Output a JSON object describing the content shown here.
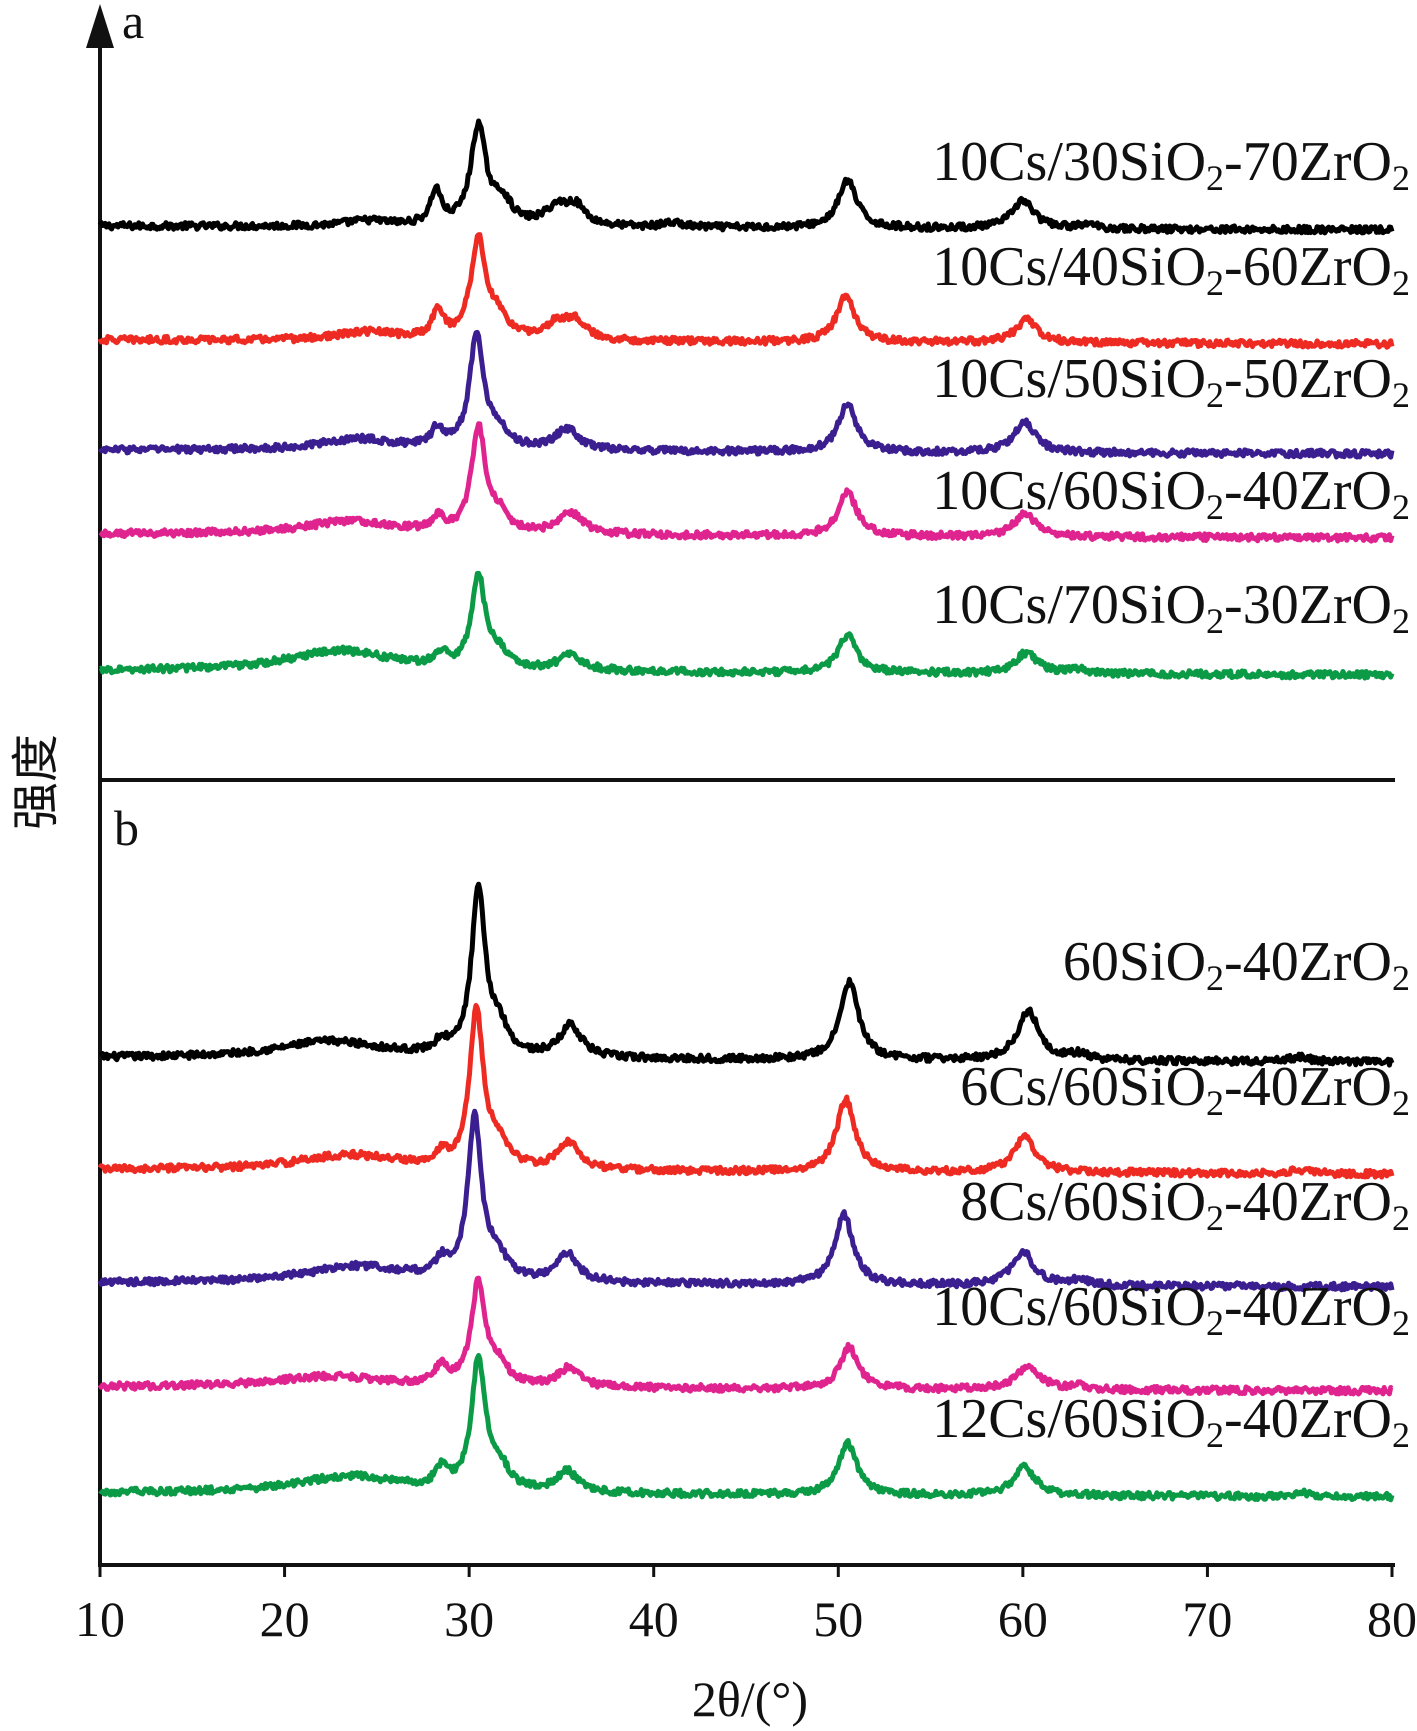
{
  "chart_data": {
    "type": "line",
    "xlabel": "2θ/(°)",
    "ylabel": "强度",
    "xlim": [
      10,
      80
    ],
    "x_ticks": [
      10,
      20,
      30,
      40,
      50,
      60,
      70,
      80
    ],
    "grid": false,
    "panels": [
      {
        "label": "a",
        "series": [
          {
            "name": "10Cs/30SiO2-70ZrO2",
            "label_main": "10Cs/30SiO",
            "label_sub": "2",
            "label_mid": "-70ZrO",
            "label_sub2": "2",
            "color": "#000000",
            "peaks": [
              [
                24.5,
                0.15,
                1.5
              ],
              [
                28.2,
                0.9,
                0.35
              ],
              [
                30.5,
                2.6,
                0.5
              ],
              [
                31.8,
                0.6,
                0.6
              ],
              [
                34.8,
                0.5,
                0.8
              ],
              [
                35.8,
                0.45,
                0.6
              ],
              [
                41.0,
                0.12,
                0.6
              ],
              [
                50.5,
                1.25,
                0.6
              ],
              [
                60.0,
                0.75,
                0.7
              ],
              [
                63.5,
                0.1,
                0.6
              ]
            ]
          },
          {
            "name": "10Cs/40SiO2-60ZrO2",
            "label_main": "10Cs/40SiO",
            "label_sub": "2",
            "label_mid": "-60ZrO",
            "label_sub2": "2",
            "color": "#ee2b22",
            "peaks": [
              [
                24.5,
                0.22,
                2.0
              ],
              [
                28.3,
                0.75,
                0.35
              ],
              [
                30.5,
                2.6,
                0.5
              ],
              [
                31.6,
                0.5,
                0.6
              ],
              [
                34.8,
                0.45,
                0.8
              ],
              [
                35.8,
                0.45,
                0.6
              ],
              [
                50.4,
                1.2,
                0.6
              ],
              [
                60.2,
                0.6,
                0.7
              ]
            ]
          },
          {
            "name": "10Cs/50SiO2-50ZrO2",
            "label_main": "10Cs/50SiO",
            "label_sub": "2",
            "label_mid": "-50ZrO",
            "label_sub2": "2",
            "color": "#3b1e8f",
            "peaks": [
              [
                24.0,
                0.3,
                2.5
              ],
              [
                28.3,
                0.5,
                0.4
              ],
              [
                30.4,
                3.0,
                0.45
              ],
              [
                31.6,
                0.5,
                0.6
              ],
              [
                35.3,
                0.55,
                0.8
              ],
              [
                50.5,
                1.25,
                0.6
              ],
              [
                60.1,
                0.8,
                0.7
              ]
            ]
          },
          {
            "name": "10Cs/60SiO2-40ZrO2",
            "label_main": "10Cs/60SiO",
            "label_sub": "2",
            "label_mid": "-40ZrO",
            "label_sub2": "2",
            "color": "#e0248f",
            "peaks": [
              [
                23.5,
                0.35,
                3.0
              ],
              [
                28.3,
                0.35,
                0.4
              ],
              [
                30.5,
                2.75,
                0.45
              ],
              [
                31.6,
                0.45,
                0.6
              ],
              [
                35.5,
                0.55,
                0.8
              ],
              [
                50.5,
                1.15,
                0.6
              ],
              [
                60.1,
                0.6,
                0.7
              ]
            ]
          },
          {
            "name": "10Cs/70SiO2-30ZrO2",
            "label_main": "10Cs/70SiO",
            "label_sub": "2",
            "label_mid": "-30ZrO",
            "label_sub2": "2",
            "color": "#0b9a45",
            "peaks": [
              [
                23.0,
                0.55,
                3.5
              ],
              [
                28.5,
                0.3,
                0.4
              ],
              [
                30.5,
                2.4,
                0.45
              ],
              [
                31.6,
                0.4,
                0.6
              ],
              [
                35.5,
                0.4,
                0.8
              ],
              [
                50.5,
                1.0,
                0.6
              ],
              [
                60.2,
                0.55,
                0.7
              ],
              [
                63.0,
                0.1,
                0.6
              ]
            ]
          }
        ]
      },
      {
        "label": "b",
        "series": [
          {
            "name": "60SiO2-40ZrO2",
            "label_main": "60SiO",
            "label_sub": "2",
            "label_mid": "-40ZrO",
            "label_sub2": "2",
            "color": "#000000",
            "peaks": [
              [
                22.5,
                0.45,
                3.5
              ],
              [
                28.5,
                0.3,
                0.4
              ],
              [
                30.5,
                4.3,
                0.45
              ],
              [
                31.6,
                0.7,
                0.6
              ],
              [
                35.5,
                0.85,
                0.7
              ],
              [
                50.6,
                2.05,
                0.6
              ],
              [
                60.3,
                1.3,
                0.7
              ],
              [
                63.0,
                0.15,
                0.6
              ],
              [
                75.0,
                0.12,
                0.6
              ]
            ]
          },
          {
            "name": "6Cs/60SiO2-40ZrO2",
            "label_main": "6Cs/60SiO",
            "label_sub": "2",
            "label_mid": "-40ZrO",
            "label_sub2": "2",
            "color": "#ee2b22",
            "peaks": [
              [
                23.5,
                0.4,
                3.5
              ],
              [
                28.5,
                0.3,
                0.4
              ],
              [
                30.4,
                4.1,
                0.45
              ],
              [
                31.6,
                0.6,
                0.6
              ],
              [
                35.4,
                0.7,
                0.7
              ],
              [
                50.4,
                1.9,
                0.6
              ],
              [
                60.1,
                0.95,
                0.7
              ],
              [
                75.0,
                0.1,
                0.6
              ]
            ]
          },
          {
            "name": "8Cs/60SiO2-40ZrO2",
            "label_main": "8Cs/60SiO",
            "label_sub": "2",
            "label_mid": "-40ZrO",
            "label_sub2": "2",
            "color": "#3b1e8f",
            "peaks": [
              [
                24.0,
                0.45,
                3.5
              ],
              [
                28.5,
                0.4,
                0.4
              ],
              [
                30.3,
                4.2,
                0.45
              ],
              [
                31.5,
                0.6,
                0.6
              ],
              [
                35.3,
                0.75,
                0.7
              ],
              [
                50.3,
                1.85,
                0.6
              ],
              [
                60.0,
                0.9,
                0.7
              ],
              [
                63.0,
                0.15,
                0.6
              ]
            ]
          },
          {
            "name": "10Cs/60SiO2-40ZrO2",
            "label_main": "10Cs/60SiO",
            "label_sub": "2",
            "label_mid": "-40ZrO",
            "label_sub2": "2",
            "color": "#e0248f",
            "peaks": [
              [
                22.5,
                0.3,
                3.5
              ],
              [
                28.5,
                0.5,
                0.4
              ],
              [
                30.5,
                2.7,
                0.45
              ],
              [
                31.6,
                0.5,
                0.6
              ],
              [
                35.4,
                0.5,
                0.7
              ],
              [
                50.6,
                1.1,
                0.6
              ],
              [
                60.3,
                0.65,
                0.7
              ],
              [
                63.0,
                0.1,
                0.6
              ]
            ]
          },
          {
            "name": "12Cs/60SiO2-40ZrO2",
            "label_main": "12Cs/60SiO",
            "label_sub": "2",
            "label_mid": "-40ZrO",
            "label_sub2": "2",
            "color": "#0b9a45",
            "peaks": [
              [
                23.5,
                0.45,
                3.5
              ],
              [
                28.5,
                0.5,
                0.4
              ],
              [
                30.5,
                3.4,
                0.45
              ],
              [
                31.6,
                0.6,
                0.6
              ],
              [
                35.3,
                0.55,
                0.7
              ],
              [
                50.5,
                1.35,
                0.6
              ],
              [
                60.1,
                0.75,
                0.7
              ],
              [
                75.0,
                0.1,
                0.6
              ]
            ]
          }
        ]
      }
    ]
  }
}
